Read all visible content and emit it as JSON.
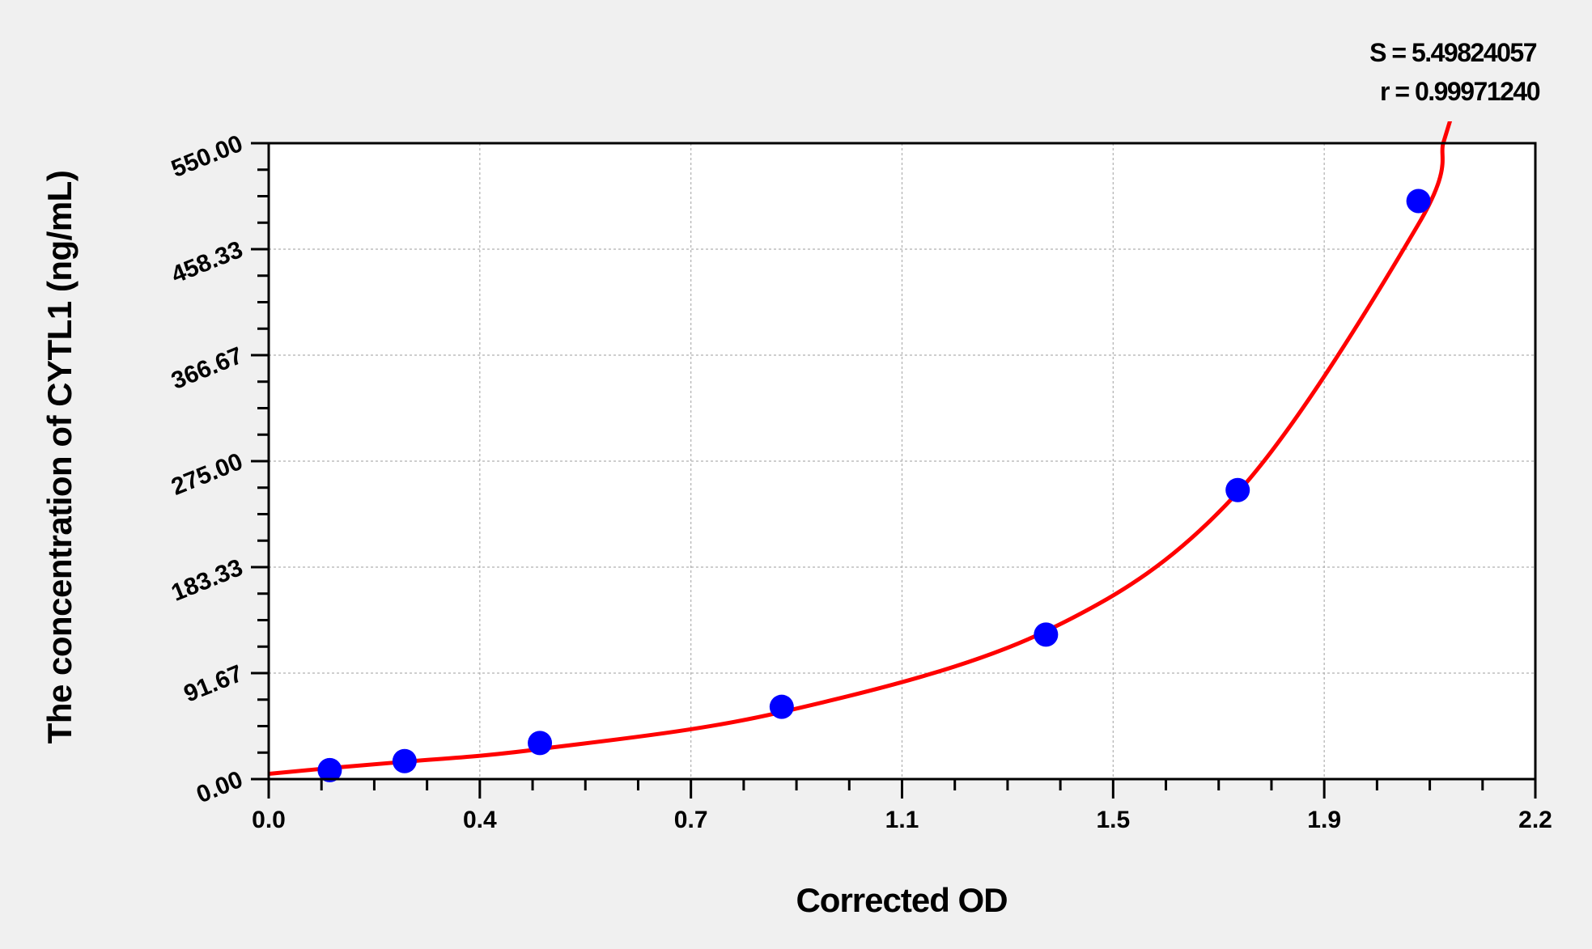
{
  "chart_data": {
    "type": "scatter",
    "title": "",
    "xlabel": "Corrected OD",
    "ylabel": "The concentration of CYTL1 (ng/mL)",
    "xlim": [
      0,
      2.2
    ],
    "ylim": [
      0,
      550
    ],
    "x_tick_labels": [
      "0.0",
      "0.4",
      "0.7",
      "1.1",
      "1.5",
      "1.9",
      "2.2"
    ],
    "y_tick_labels": [
      "0.00",
      "91.67",
      "183.33",
      "275.00",
      "366.67",
      "458.33",
      "550.00"
    ],
    "grid": true,
    "points": {
      "x": [
        0.106,
        0.236,
        0.471,
        0.891,
        1.35,
        1.683,
        1.997
      ],
      "y": [
        7.8,
        15.6,
        31.25,
        62.5,
        125,
        250,
        500
      ],
      "color": "#0000ff"
    },
    "fit_curve": {
      "color": "#ff0000",
      "x": [
        0.0,
        0.106,
        0.236,
        0.471,
        0.891,
        1.35,
        1.683,
        1.997,
        2.04
      ],
      "y": [
        4.5,
        9.5,
        15,
        26,
        58,
        128,
        248,
        480,
        550
      ]
    },
    "stats": {
      "s_text": "S = 5.49824057",
      "r_text": "r = 0.99971240"
    }
  }
}
